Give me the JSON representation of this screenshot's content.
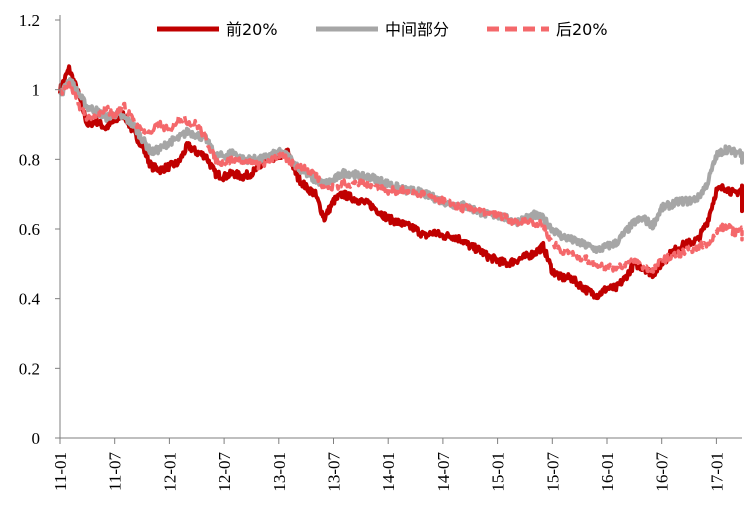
{
  "chart_data": {
    "type": "line",
    "title": "",
    "xlabel": "",
    "ylabel": "",
    "ylim": [
      0,
      1.2
    ],
    "yticks": [
      "0",
      "0.2",
      "0.4",
      "0.6",
      "0.8",
      "1",
      "1.2"
    ],
    "xticks": [
      "11-01",
      "11-07",
      "12-01",
      "12-07",
      "13-01",
      "13-07",
      "14-01",
      "14-07",
      "15-01",
      "15-07",
      "16-01",
      "16-07",
      "17-01"
    ],
    "grid": false,
    "legend_position": "top",
    "series": [
      {
        "name": "前20%",
        "color": "#c00000",
        "dash": "solid",
        "points": [
          [
            "11-01",
            1.0
          ],
          [
            "11-02",
            1.06
          ],
          [
            "11-03",
            0.99
          ],
          [
            "11-04",
            0.9
          ],
          [
            "11-05",
            0.91
          ],
          [
            "11-06",
            0.89
          ],
          [
            "11-07",
            0.91
          ],
          [
            "11-08",
            0.93
          ],
          [
            "11-09",
            0.88
          ],
          [
            "11-10",
            0.84
          ],
          [
            "11-11",
            0.78
          ],
          [
            "11-12",
            0.77
          ],
          [
            "12-01",
            0.78
          ],
          [
            "12-02",
            0.79
          ],
          [
            "12-03",
            0.84
          ],
          [
            "12-04",
            0.82
          ],
          [
            "12-05",
            0.81
          ],
          [
            "12-06",
            0.76
          ],
          [
            "12-07",
            0.75
          ],
          [
            "12-08",
            0.76
          ],
          [
            "12-09",
            0.75
          ],
          [
            "12-10",
            0.76
          ],
          [
            "12-11",
            0.78
          ],
          [
            "12-12",
            0.8
          ],
          [
            "13-01",
            0.81
          ],
          [
            "13-02",
            0.82
          ],
          [
            "13-03",
            0.75
          ],
          [
            "13-04",
            0.72
          ],
          [
            "13-05",
            0.7
          ],
          [
            "13-06",
            0.63
          ],
          [
            "13-07",
            0.68
          ],
          [
            "13-08",
            0.7
          ],
          [
            "13-09",
            0.69
          ],
          [
            "13-10",
            0.68
          ],
          [
            "13-11",
            0.67
          ],
          [
            "13-12",
            0.65
          ],
          [
            "14-01",
            0.63
          ],
          [
            "14-02",
            0.62
          ],
          [
            "14-03",
            0.61
          ],
          [
            "14-04",
            0.6
          ],
          [
            "14-05",
            0.58
          ],
          [
            "14-06",
            0.59
          ],
          [
            "14-07",
            0.58
          ],
          [
            "14-08",
            0.58
          ],
          [
            "14-09",
            0.57
          ],
          [
            "14-10",
            0.55
          ],
          [
            "14-11",
            0.54
          ],
          [
            "14-12",
            0.52
          ],
          [
            "15-01",
            0.51
          ],
          [
            "15-02",
            0.5
          ],
          [
            "15-03",
            0.51
          ],
          [
            "15-04",
            0.52
          ],
          [
            "15-05",
            0.53
          ],
          [
            "15-06",
            0.55
          ],
          [
            "15-07",
            0.48
          ],
          [
            "15-08",
            0.46
          ],
          [
            "15-09",
            0.46
          ],
          [
            "15-10",
            0.44
          ],
          [
            "15-11",
            0.42
          ],
          [
            "15-12",
            0.41
          ],
          [
            "16-01",
            0.43
          ],
          [
            "16-02",
            0.43
          ],
          [
            "16-03",
            0.46
          ],
          [
            "16-04",
            0.5
          ],
          [
            "16-05",
            0.49
          ],
          [
            "16-06",
            0.47
          ],
          [
            "16-07",
            0.5
          ],
          [
            "16-08",
            0.53
          ],
          [
            "16-09",
            0.55
          ],
          [
            "16-10",
            0.56
          ],
          [
            "16-11",
            0.57
          ],
          [
            "16-12",
            0.62
          ],
          [
            "17-01",
            0.71
          ],
          [
            "17-02",
            0.72
          ],
          [
            "17-03",
            0.7
          ],
          [
            "17-04",
            0.72
          ],
          [
            "17-05",
            0.65
          ]
        ]
      },
      {
        "name": "中间部分",
        "color": "#a6a6a6",
        "dash": "solid",
        "points": [
          [
            "11-01",
            0.98
          ],
          [
            "11-02",
            1.03
          ],
          [
            "11-03",
            0.99
          ],
          [
            "11-04",
            0.95
          ],
          [
            "11-05",
            0.94
          ],
          [
            "11-06",
            0.92
          ],
          [
            "11-07",
            0.93
          ],
          [
            "11-08",
            0.92
          ],
          [
            "11-09",
            0.9
          ],
          [
            "11-10",
            0.86
          ],
          [
            "11-11",
            0.82
          ],
          [
            "11-12",
            0.83
          ],
          [
            "12-01",
            0.85
          ],
          [
            "12-02",
            0.86
          ],
          [
            "12-03",
            0.88
          ],
          [
            "12-04",
            0.87
          ],
          [
            "12-05",
            0.86
          ],
          [
            "12-06",
            0.81
          ],
          [
            "12-07",
            0.81
          ],
          [
            "12-08",
            0.82
          ],
          [
            "12-09",
            0.8
          ],
          [
            "12-10",
            0.8
          ],
          [
            "12-11",
            0.8
          ],
          [
            "12-12",
            0.81
          ],
          [
            "13-01",
            0.82
          ],
          [
            "13-02",
            0.81
          ],
          [
            "13-03",
            0.78
          ],
          [
            "13-04",
            0.76
          ],
          [
            "13-05",
            0.74
          ],
          [
            "13-06",
            0.73
          ],
          [
            "13-07",
            0.74
          ],
          [
            "13-08",
            0.76
          ],
          [
            "13-09",
            0.76
          ],
          [
            "13-10",
            0.75
          ],
          [
            "13-11",
            0.75
          ],
          [
            "13-12",
            0.74
          ],
          [
            "14-01",
            0.73
          ],
          [
            "14-02",
            0.72
          ],
          [
            "14-03",
            0.71
          ],
          [
            "14-04",
            0.71
          ],
          [
            "14-05",
            0.7
          ],
          [
            "14-06",
            0.69
          ],
          [
            "14-07",
            0.68
          ],
          [
            "14-08",
            0.67
          ],
          [
            "14-09",
            0.67
          ],
          [
            "14-10",
            0.66
          ],
          [
            "14-11",
            0.65
          ],
          [
            "14-12",
            0.64
          ],
          [
            "15-01",
            0.64
          ],
          [
            "15-02",
            0.63
          ],
          [
            "15-03",
            0.62
          ],
          [
            "15-04",
            0.63
          ],
          [
            "15-05",
            0.64
          ],
          [
            "15-06",
            0.63
          ],
          [
            "15-07",
            0.6
          ],
          [
            "15-08",
            0.58
          ],
          [
            "15-09",
            0.57
          ],
          [
            "15-10",
            0.56
          ],
          [
            "15-11",
            0.55
          ],
          [
            "15-12",
            0.54
          ],
          [
            "16-01",
            0.55
          ],
          [
            "16-02",
            0.56
          ],
          [
            "16-03",
            0.59
          ],
          [
            "16-04",
            0.62
          ],
          [
            "16-05",
            0.63
          ],
          [
            "16-06",
            0.61
          ],
          [
            "16-07",
            0.66
          ],
          [
            "16-08",
            0.67
          ],
          [
            "16-09",
            0.68
          ],
          [
            "16-10",
            0.68
          ],
          [
            "16-11",
            0.69
          ],
          [
            "16-12",
            0.73
          ],
          [
            "17-01",
            0.81
          ],
          [
            "17-02",
            0.83
          ],
          [
            "17-03",
            0.82
          ],
          [
            "17-04",
            0.82
          ],
          [
            "17-05",
            0.79
          ]
        ]
      },
      {
        "name": "后20%",
        "color": "#f4686b",
        "dash": "dashed",
        "points": [
          [
            "11-01",
            0.99
          ],
          [
            "11-02",
            1.02
          ],
          [
            "11-03",
            0.96
          ],
          [
            "11-04",
            0.92
          ],
          [
            "11-05",
            0.92
          ],
          [
            "11-06",
            0.95
          ],
          [
            "11-07",
            0.92
          ],
          [
            "11-08",
            0.96
          ],
          [
            "11-09",
            0.91
          ],
          [
            "11-10",
            0.88
          ],
          [
            "11-11",
            0.88
          ],
          [
            "11-12",
            0.9
          ],
          [
            "12-01",
            0.88
          ],
          [
            "12-02",
            0.92
          ],
          [
            "12-03",
            0.91
          ],
          [
            "12-04",
            0.9
          ],
          [
            "12-05",
            0.86
          ],
          [
            "12-06",
            0.8
          ],
          [
            "12-07",
            0.79
          ],
          [
            "12-08",
            0.8
          ],
          [
            "12-09",
            0.79
          ],
          [
            "12-10",
            0.79
          ],
          [
            "12-11",
            0.78
          ],
          [
            "12-12",
            0.8
          ],
          [
            "13-01",
            0.81
          ],
          [
            "13-02",
            0.8
          ],
          [
            "13-03",
            0.78
          ],
          [
            "13-04",
            0.77
          ],
          [
            "13-05",
            0.76
          ],
          [
            "13-06",
            0.72
          ],
          [
            "13-07",
            0.72
          ],
          [
            "13-08",
            0.73
          ],
          [
            "13-09",
            0.73
          ],
          [
            "13-10",
            0.73
          ],
          [
            "13-11",
            0.73
          ],
          [
            "13-12",
            0.72
          ],
          [
            "14-01",
            0.71
          ],
          [
            "14-02",
            0.71
          ],
          [
            "14-03",
            0.71
          ],
          [
            "14-04",
            0.7
          ],
          [
            "14-05",
            0.7
          ],
          [
            "14-06",
            0.69
          ],
          [
            "14-07",
            0.68
          ],
          [
            "14-08",
            0.67
          ],
          [
            "14-09",
            0.66
          ],
          [
            "14-10",
            0.66
          ],
          [
            "14-11",
            0.65
          ],
          [
            "14-12",
            0.64
          ],
          [
            "15-01",
            0.64
          ],
          [
            "15-02",
            0.63
          ],
          [
            "15-03",
            0.62
          ],
          [
            "15-04",
            0.62
          ],
          [
            "15-05",
            0.62
          ],
          [
            "15-06",
            0.61
          ],
          [
            "15-07",
            0.56
          ],
          [
            "15-08",
            0.54
          ],
          [
            "15-09",
            0.53
          ],
          [
            "15-10",
            0.52
          ],
          [
            "15-11",
            0.51
          ],
          [
            "15-12",
            0.5
          ],
          [
            "16-01",
            0.49
          ],
          [
            "16-02",
            0.49
          ],
          [
            "16-03",
            0.5
          ],
          [
            "16-04",
            0.51
          ],
          [
            "16-05",
            0.49
          ],
          [
            "16-06",
            0.48
          ],
          [
            "16-07",
            0.51
          ],
          [
            "16-08",
            0.52
          ],
          [
            "16-09",
            0.53
          ],
          [
            "16-10",
            0.54
          ],
          [
            "16-11",
            0.55
          ],
          [
            "16-12",
            0.56
          ],
          [
            "17-01",
            0.59
          ],
          [
            "17-02",
            0.61
          ],
          [
            "17-03",
            0.59
          ],
          [
            "17-04",
            0.6
          ],
          [
            "17-05",
            0.57
          ]
        ]
      }
    ]
  }
}
